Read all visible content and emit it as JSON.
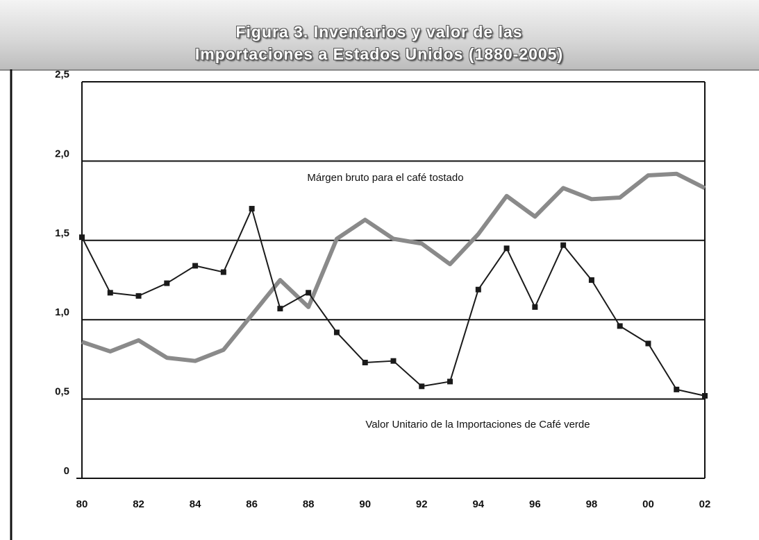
{
  "chart_data": {
    "type": "line",
    "title": "Figura 3. Inventarios y valor de las Importaciones a Estados Unidos (1880-2005)",
    "categories": [
      "80",
      null,
      "82",
      null,
      "84",
      null,
      "86",
      null,
      "88",
      null,
      "90",
      null,
      "92",
      null,
      "94",
      null,
      "96",
      null,
      "98",
      null,
      "00",
      null,
      "02"
    ],
    "series": [
      {
        "name": "Márgen bruto para el café tostado",
        "color": "#8a8a8a",
        "line_width": 6,
        "markers": false,
        "values": [
          0.86,
          0.8,
          0.87,
          0.76,
          0.74,
          0.81,
          1.03,
          1.25,
          1.08,
          1.51,
          1.63,
          1.51,
          1.48,
          1.35,
          1.54,
          1.78,
          1.65,
          1.83,
          1.76,
          1.77,
          1.91,
          1.92,
          1.83
        ]
      },
      {
        "name": "Valor Unitario de la Importaciones de Café verde",
        "color": "#1a1a1a",
        "line_width": 2,
        "markers": true,
        "values": [
          1.52,
          1.17,
          1.15,
          1.23,
          1.34,
          1.3,
          1.7,
          1.07,
          1.17,
          0.92,
          0.73,
          0.74,
          0.58,
          0.61,
          1.19,
          1.45,
          1.08,
          1.47,
          1.25,
          0.96,
          0.85,
          0.56,
          0.52
        ]
      }
    ],
    "ylim": [
      0,
      2.5
    ],
    "yticks": [
      0,
      {
        "value": 0.5,
        "label": "0,5"
      },
      {
        "value": 1.0,
        "label": "1,0"
      },
      {
        "value": 1.5,
        "label": "1,5"
      },
      {
        "value": 2.0,
        "label": "2,0"
      },
      {
        "value": 2.5,
        "label": "2,5"
      }
    ],
    "grid": true
  }
}
